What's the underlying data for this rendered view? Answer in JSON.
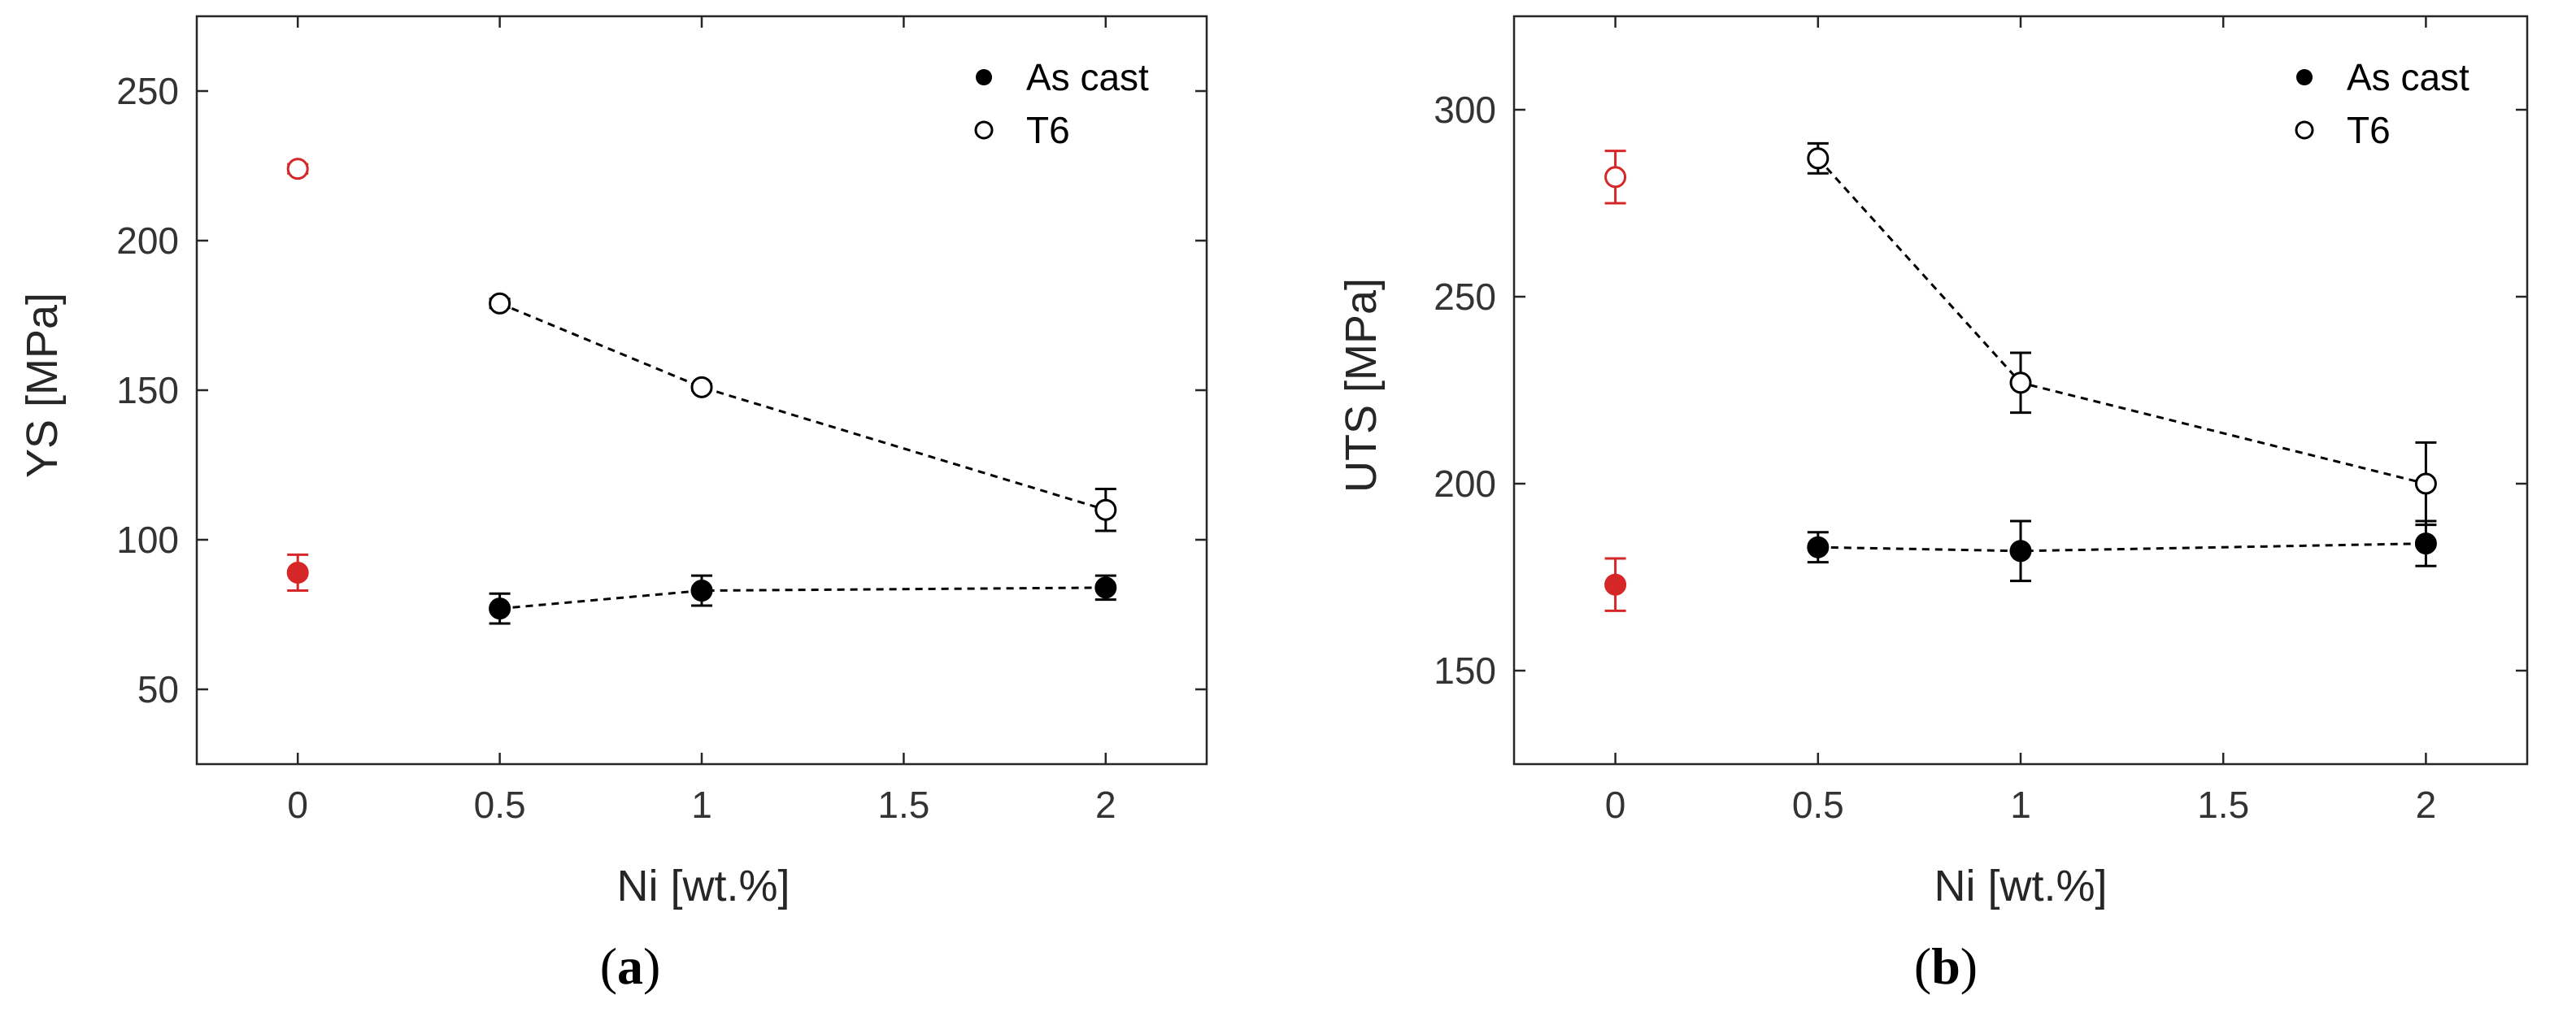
{
  "chart_data": [
    {
      "type": "scatter",
      "panel_label": {
        "open": "(",
        "letter": "a",
        "close": ")"
      },
      "title": "",
      "xlabel": "Ni [wt.%]",
      "ylabel": "YS [MPa]",
      "xlim": [
        -0.25,
        2.25
      ],
      "ylim": [
        25,
        275
      ],
      "xticks": [
        0,
        0.5,
        1,
        1.5,
        2
      ],
      "xtick_labels": [
        "0",
        "0.5",
        "1",
        "1.5",
        "2"
      ],
      "yticks": [
        50,
        100,
        150,
        200,
        250
      ],
      "ytick_labels": [
        "50",
        "100",
        "150",
        "200",
        "250"
      ],
      "grid": false,
      "legend_position": "top-right",
      "series": [
        {
          "name": "As cast",
          "marker": "filled-circle",
          "color": "#000000",
          "line": "dashed",
          "points": [
            {
              "x": 0.5,
              "y": 77,
              "err": 5
            },
            {
              "x": 1,
              "y": 83,
              "err": 5
            },
            {
              "x": 2,
              "y": 84,
              "err": 4
            }
          ],
          "reference": {
            "x": 0,
            "y": 89,
            "err": 6,
            "color": "#d62728"
          }
        },
        {
          "name": "T6",
          "marker": "open-circle",
          "color": "#000000",
          "line": "dashed",
          "points": [
            {
              "x": 0.5,
              "y": 179,
              "err": 1.5
            },
            {
              "x": 1,
              "y": 151,
              "err": 1
            },
            {
              "x": 2,
              "y": 110,
              "err": 7
            }
          ],
          "reference": {
            "x": 0,
            "y": 224,
            "err": 1.5,
            "color": "#d62728"
          }
        }
      ]
    },
    {
      "type": "scatter",
      "panel_label": {
        "open": "(",
        "letter": "b",
        "close": ")"
      },
      "title": "",
      "xlabel": "Ni [wt.%]",
      "ylabel": "UTS [MPa]",
      "xlim": [
        -0.25,
        2.25
      ],
      "ylim": [
        125,
        325
      ],
      "xticks": [
        0,
        0.5,
        1,
        1.5,
        2
      ],
      "xtick_labels": [
        "0",
        "0.5",
        "1",
        "1.5",
        "2"
      ],
      "yticks": [
        150,
        200,
        250,
        300
      ],
      "ytick_labels": [
        "150",
        "200",
        "250",
        "300"
      ],
      "grid": false,
      "legend_position": "top-right",
      "series": [
        {
          "name": "As cast",
          "marker": "filled-circle",
          "color": "#000000",
          "line": "dashed",
          "points": [
            {
              "x": 0.5,
              "y": 183,
              "err": 4
            },
            {
              "x": 1,
              "y": 182,
              "err": 8
            },
            {
              "x": 2,
              "y": 184,
              "err": 6
            }
          ],
          "reference": {
            "x": 0,
            "y": 173,
            "err": 7,
            "color": "#d62728"
          }
        },
        {
          "name": "T6",
          "marker": "open-circle",
          "color": "#000000",
          "line": "dashed",
          "points": [
            {
              "x": 0.5,
              "y": 287,
              "err": 4
            },
            {
              "x": 1,
              "y": 227,
              "err": 8
            },
            {
              "x": 2,
              "y": 200,
              "err": 11
            }
          ],
          "reference": {
            "x": 0,
            "y": 282,
            "err": 7,
            "color": "#d62728"
          }
        }
      ]
    }
  ]
}
